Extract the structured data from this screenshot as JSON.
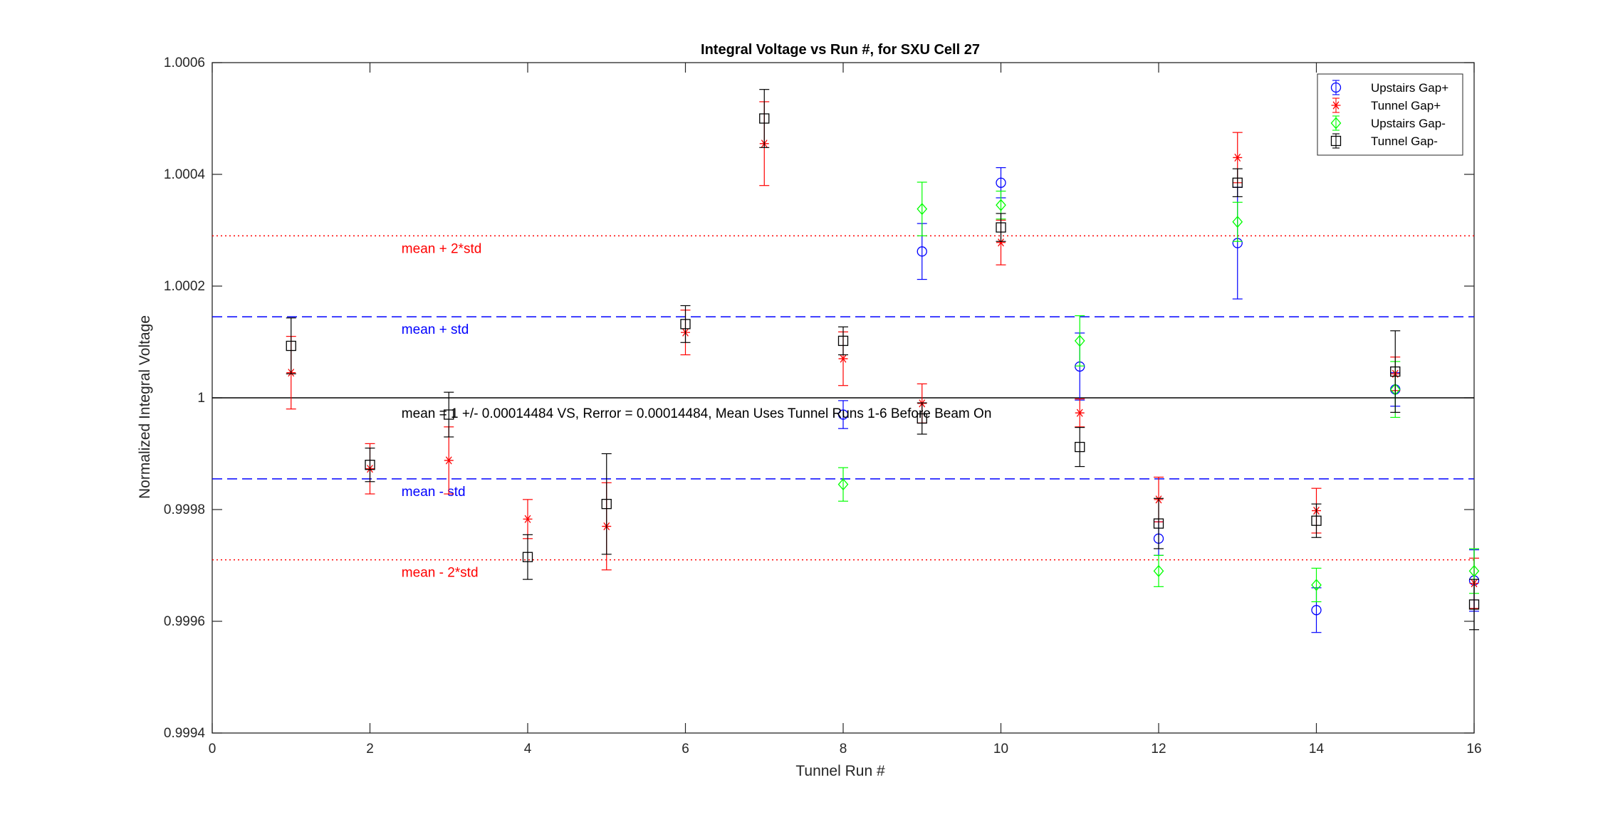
{
  "chart_data": {
    "type": "scatter",
    "title": "Integral Voltage vs Run #, for SXU Cell 27",
    "xlabel": "Tunnel Run #",
    "ylabel": "Normalized Integral Voltage",
    "xlim": [
      0,
      16
    ],
    "ylim": [
      0.9994,
      1.0006
    ],
    "xticks": [
      0,
      2,
      4,
      6,
      8,
      10,
      12,
      14,
      16
    ],
    "xtick_labels": [
      "0",
      "2",
      "4",
      "6",
      "8",
      "10",
      "12",
      "14",
      "16"
    ],
    "yticks": [
      0.9994,
      0.9996,
      0.9998,
      1.0,
      1.0002,
      1.0004,
      1.0006
    ],
    "ytick_labels": [
      "0.9994",
      "0.9996",
      "0.9998",
      "1",
      "1.0002",
      "1.0004",
      "1.0006"
    ],
    "grid": false,
    "legend_position": "top-right",
    "series": [
      {
        "name": "Upstairs Gap+",
        "color": "#0000ff",
        "marker": "circle",
        "points": [
          {
            "x": 8,
            "y": 0.99997,
            "err": 2.5e-05
          },
          {
            "x": 9,
            "y": 1.000262,
            "err": 5e-05
          },
          {
            "x": 10,
            "y": 1.000385,
            "err": 2.7e-05
          },
          {
            "x": 11,
            "y": 1.000056,
            "err": 6e-05
          },
          {
            "x": 12,
            "y": 0.999748,
            "err": 3e-05
          },
          {
            "x": 13,
            "y": 1.000277,
            "err": 0.0001
          },
          {
            "x": 14,
            "y": 0.99962,
            "err": 4e-05
          },
          {
            "x": 15,
            "y": 1.000015,
            "err": 3e-05
          },
          {
            "x": 16,
            "y": 0.999673,
            "err": 5.5e-05
          }
        ]
      },
      {
        "name": "Tunnel Gap+",
        "color": "#ff0000",
        "marker": "asterisk",
        "points": [
          {
            "x": 1,
            "y": 1.000045,
            "err": 6.5e-05
          },
          {
            "x": 2,
            "y": 0.999873,
            "err": 4.5e-05
          },
          {
            "x": 3,
            "y": 0.999888,
            "err": 6e-05
          },
          {
            "x": 4,
            "y": 0.999783,
            "err": 3.5e-05
          },
          {
            "x": 5,
            "y": 0.99977,
            "err": 7.8e-05
          },
          {
            "x": 6,
            "y": 1.000117,
            "err": 4e-05
          },
          {
            "x": 7,
            "y": 1.000455,
            "err": 7.5e-05
          },
          {
            "x": 8,
            "y": 1.00007,
            "err": 4.8e-05
          },
          {
            "x": 9,
            "y": 0.99999,
            "err": 3.5e-05
          },
          {
            "x": 10,
            "y": 1.000278,
            "err": 4e-05
          },
          {
            "x": 11,
            "y": 0.999973,
            "err": 2.5e-05
          },
          {
            "x": 12,
            "y": 0.999818,
            "err": 4e-05
          },
          {
            "x": 13,
            "y": 1.00043,
            "err": 4.5e-05
          },
          {
            "x": 14,
            "y": 0.999798,
            "err": 4e-05
          },
          {
            "x": 15,
            "y": 1.000043,
            "err": 3e-05
          },
          {
            "x": 16,
            "y": 0.999668,
            "err": 4.5e-05
          }
        ]
      },
      {
        "name": "Upstairs Gap-",
        "color": "#00ff00",
        "marker": "diamond",
        "points": [
          {
            "x": 8,
            "y": 0.999845,
            "err": 3e-05
          },
          {
            "x": 9,
            "y": 1.000338,
            "err": 4.8e-05
          },
          {
            "x": 10,
            "y": 1.000345,
            "err": 2.5e-05
          },
          {
            "x": 11,
            "y": 1.000102,
            "err": 4.5e-05
          },
          {
            "x": 12,
            "y": 0.99969,
            "err": 2.8e-05
          },
          {
            "x": 13,
            "y": 1.000315,
            "err": 3.5e-05
          },
          {
            "x": 14,
            "y": 0.999665,
            "err": 3e-05
          },
          {
            "x": 15,
            "y": 1.000015,
            "err": 5e-05
          },
          {
            "x": 16,
            "y": 0.99969,
            "err": 4e-05
          }
        ]
      },
      {
        "name": "Tunnel Gap-",
        "color": "#000000",
        "marker": "square",
        "points": [
          {
            "x": 1,
            "y": 1.000093,
            "err": 5e-05
          },
          {
            "x": 2,
            "y": 0.99988,
            "err": 3e-05
          },
          {
            "x": 3,
            "y": 0.99997,
            "err": 4e-05
          },
          {
            "x": 4,
            "y": 0.999715,
            "err": 4e-05
          },
          {
            "x": 5,
            "y": 0.99981,
            "err": 9e-05
          },
          {
            "x": 6,
            "y": 1.000132,
            "err": 3.3e-05
          },
          {
            "x": 7,
            "y": 1.0005,
            "err": 5.2e-05
          },
          {
            "x": 8,
            "y": 1.000102,
            "err": 2.5e-05
          },
          {
            "x": 9,
            "y": 0.999963,
            "err": 2.8e-05
          },
          {
            "x": 10,
            "y": 1.000305,
            "err": 2.5e-05
          },
          {
            "x": 11,
            "y": 0.999912,
            "err": 3.5e-05
          },
          {
            "x": 12,
            "y": 0.999775,
            "err": 4.5e-05
          },
          {
            "x": 13,
            "y": 1.000385,
            "err": 2.5e-05
          },
          {
            "x": 14,
            "y": 0.99978,
            "err": 3e-05
          },
          {
            "x": 15,
            "y": 1.000047,
            "err": 7.3e-05
          },
          {
            "x": 16,
            "y": 0.99963,
            "err": 4.5e-05
          }
        ]
      }
    ],
    "reference_lines": [
      {
        "y": 1.00029,
        "color": "#ff0000",
        "style": "dotted",
        "label": "mean + 2*std",
        "label_x": 2.4
      },
      {
        "y": 1.000145,
        "color": "#0000ff",
        "style": "dashed",
        "label": "mean + std",
        "label_x": 2.4
      },
      {
        "y": 1.0,
        "color": "#000000",
        "style": "solid",
        "label": "",
        "label_x": 2.4
      },
      {
        "y": 0.999855,
        "color": "#0000ff",
        "style": "dashed",
        "label": "mean - std",
        "label_x": 2.4
      },
      {
        "y": 0.99971,
        "color": "#ff0000",
        "style": "dotted",
        "label": "mean - 2*std",
        "label_x": 2.4
      }
    ],
    "annotation": {
      "text": "mean = 1 +/- 0.00014484 VS, Rerror = 0.00014484, Mean Uses Tunnel Runs 1-6 Before Beam On",
      "x": 2.4,
      "y": 0.999973,
      "color": "#000000"
    }
  }
}
